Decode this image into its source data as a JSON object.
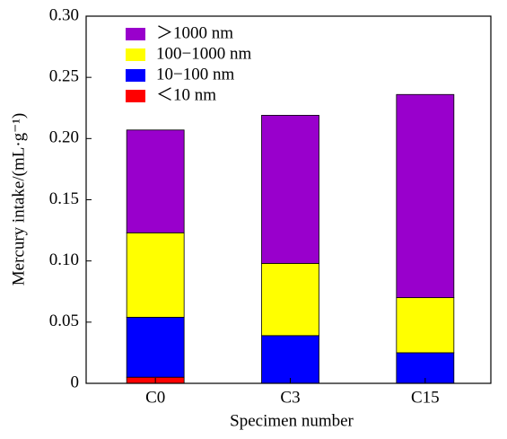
{
  "chart_data": {
    "type": "stacked_bar",
    "x_label": "Specimen number",
    "y_label": "Mercury intake/(mL·g⁻¹)",
    "categories": [
      "C0",
      "C3",
      "C15"
    ],
    "series": [
      {
        "name": "＜10 nm",
        "color": "#ff0000",
        "values": [
          0.005,
          0,
          0
        ]
      },
      {
        "name": "10−100 nm",
        "color": "#0000ff",
        "values": [
          0.049,
          0.039,
          0.025
        ]
      },
      {
        "name": "100−1000 nm",
        "color": "#ffff00",
        "values": [
          0.069,
          0.059,
          0.045
        ]
      },
      {
        "name": "＞1000 nm",
        "color": "#9900cc",
        "values": [
          0.084,
          0.121,
          0.166
        ]
      }
    ],
    "ylim": [
      0,
      0.3
    ],
    "yticks": [
      0,
      0.05,
      {
        "value": 0.1,
        "label": "0.10"
      },
      0.15,
      {
        "value": 0.2,
        "label": "0.20"
      },
      0.25,
      {
        "value": 0.3,
        "label": "0.30"
      }
    ],
    "legend": "upper left"
  }
}
